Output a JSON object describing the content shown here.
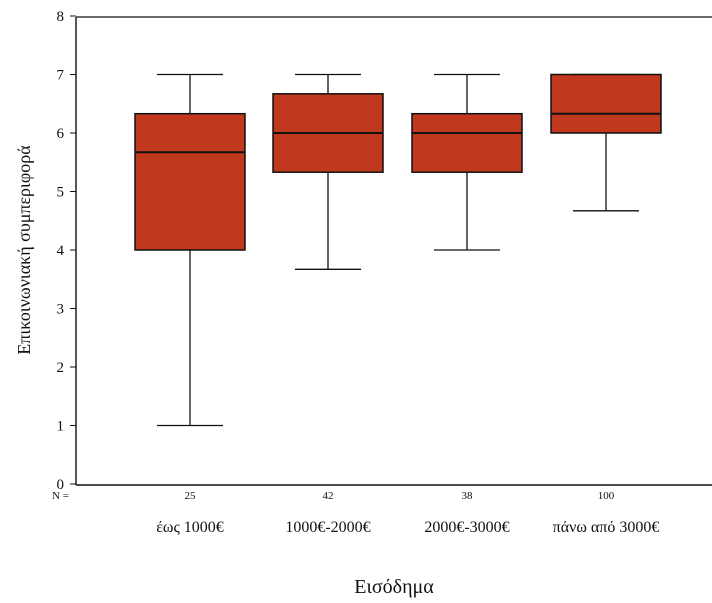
{
  "chart_data": {
    "type": "boxplot",
    "xlabel": "Εισόδημα",
    "ylabel": "Επικοινωνιακή συμπεριφορά",
    "ylim": [
      0,
      8
    ],
    "yticks": [
      0,
      1,
      2,
      3,
      4,
      5,
      6,
      7,
      8
    ],
    "n_prefix": "N =",
    "box_color": "#c0391f",
    "grid": false,
    "categories": [
      "έως 1000€",
      "1000€-2000€",
      "2000€-3000€",
      "πάνω από 3000€"
    ],
    "n": [
      "25",
      "42",
      "38",
      "100"
    ],
    "boxes": [
      {
        "min": 1.0,
        "q1": 4.0,
        "median": 5.67,
        "q3": 6.33,
        "max": 7.0
      },
      {
        "min": 3.67,
        "q1": 5.33,
        "median": 6.0,
        "q3": 6.67,
        "max": 7.0
      },
      {
        "min": 4.0,
        "q1": 5.33,
        "median": 6.0,
        "q3": 6.33,
        "max": 7.0
      },
      {
        "min": 4.67,
        "q1": 6.0,
        "median": 6.33,
        "q3": 7.0,
        "max": 7.0
      }
    ]
  }
}
